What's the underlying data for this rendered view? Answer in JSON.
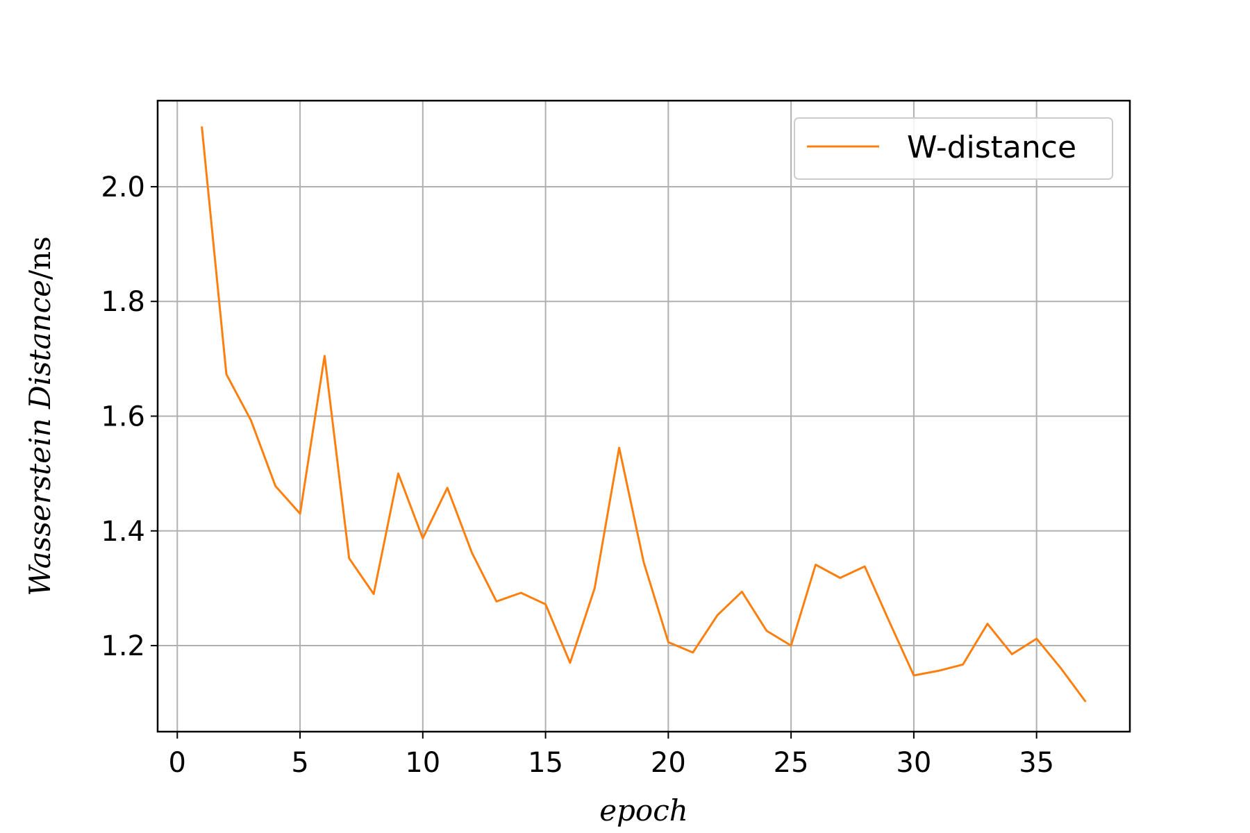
{
  "chart_data": {
    "type": "line",
    "title": "",
    "xlabel": "epoch",
    "ylabel_main": "Wasserstein Distance",
    "ylabel_unit": "/ns",
    "xlim": [
      -0.8,
      38.8
    ],
    "ylim": [
      1.05,
      2.15
    ],
    "xticks": [
      0,
      5,
      10,
      15,
      20,
      25,
      30,
      35
    ],
    "yticks": [
      1.2,
      1.4,
      1.6,
      1.8,
      2.0
    ],
    "ytick_labels": [
      "1.2",
      "1.4",
      "1.6",
      "1.8",
      "2.0"
    ],
    "grid": true,
    "legend_position": "top-right",
    "series": [
      {
        "name": "W-distance",
        "color": "#ff7f0e",
        "x": [
          1,
          2,
          3,
          4,
          5,
          6,
          7,
          8,
          9,
          10,
          11,
          12,
          13,
          14,
          15,
          16,
          17,
          18,
          19,
          20,
          21,
          22,
          23,
          24,
          25,
          26,
          27,
          28,
          29,
          30,
          31,
          32,
          33,
          34,
          35,
          36,
          37
        ],
        "y": [
          2.105,
          1.673,
          1.593,
          1.478,
          1.43,
          1.705,
          1.352,
          1.29,
          1.5,
          1.387,
          1.475,
          1.362,
          1.277,
          1.292,
          1.272,
          1.17,
          1.3,
          1.545,
          1.345,
          1.206,
          1.188,
          1.253,
          1.294,
          1.226,
          1.2,
          1.341,
          1.318,
          1.338,
          1.242,
          1.148,
          1.156,
          1.167,
          1.238,
          1.185,
          1.212,
          1.16,
          1.102
        ]
      }
    ]
  }
}
